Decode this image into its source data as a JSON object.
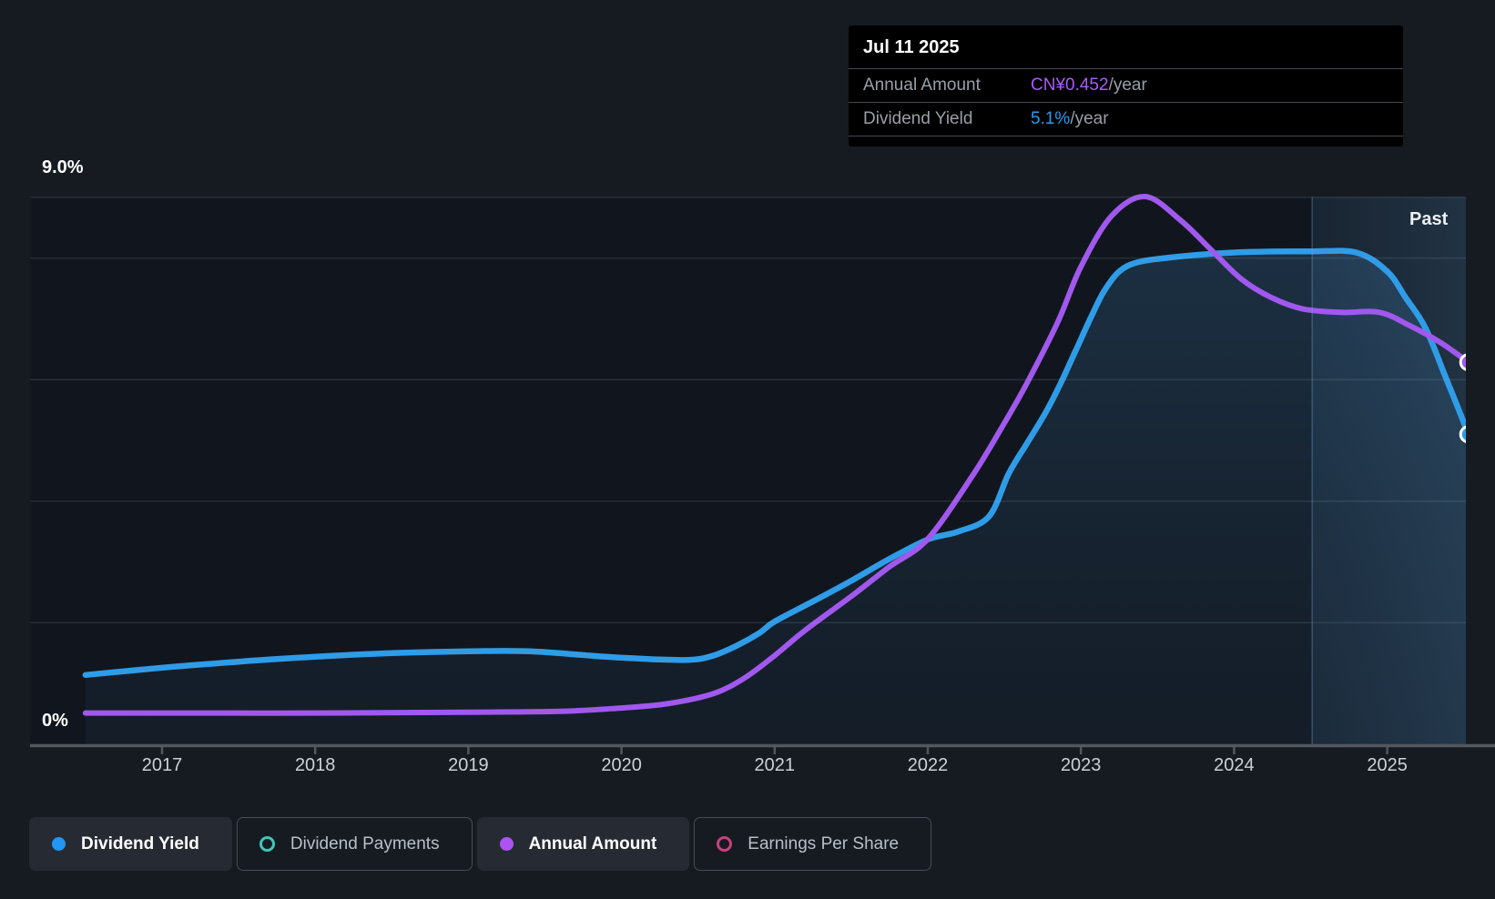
{
  "tooltip": {
    "date": "Jul 11 2025",
    "rows": [
      {
        "label": "Annual Amount",
        "value": "CN¥0.452",
        "suffix": "/year",
        "color": "#ab5bf5"
      },
      {
        "label": "Dividend Yield",
        "value": "5.1%",
        "suffix": "/year",
        "color": "#2a9cf2"
      }
    ]
  },
  "y_axis": {
    "top": "9.0%",
    "bottom": "0%"
  },
  "x_axis": {
    "labels": [
      "2017",
      "2018",
      "2019",
      "2020",
      "2021",
      "2022",
      "2023",
      "2024",
      "2025"
    ]
  },
  "region_label": "Past",
  "legend": [
    {
      "label": "Dividend Yield",
      "color": "#2196f3",
      "marker": "filled",
      "active": true
    },
    {
      "label": "Dividend Payments",
      "color": "#45c4b8",
      "marker": "open",
      "active": false
    },
    {
      "label": "Annual Amount",
      "color": "#ad53f2",
      "marker": "filled",
      "active": true
    },
    {
      "label": "Earnings Per Share",
      "color": "#c9417c",
      "marker": "open",
      "active": false
    }
  ],
  "colors": {
    "background": "#161b22",
    "plot_background": "#11161e",
    "blue_line": "#2f9ce8",
    "purple_line": "#a158ee",
    "axis": "#53575e"
  },
  "chart_data": {
    "type": "line",
    "title": "Dividend history and yield",
    "x_range": [
      2016.5,
      2025.53
    ],
    "divider_year": 2024.51,
    "x_ticks_years": [
      2017,
      2018,
      2019,
      2020,
      2021,
      2022,
      2023,
      2024,
      2025
    ],
    "y_left": {
      "label": "Dividend Yield",
      "unit": "%",
      "min": 0,
      "max": 9,
      "gridlines_pct": [
        9,
        8,
        6,
        4,
        2
      ]
    },
    "y_right": {
      "label": "Annual Amount",
      "unit": "CN¥/year"
    },
    "legend_position": "bottom-left",
    "grid": true,
    "series": [
      {
        "name": "Dividend Yield",
        "unit": "%",
        "axis": "pct",
        "color": "#2f9ce8",
        "area": true,
        "end_value_label": "5.1%/year",
        "points": [
          [
            2016.5,
            1.14
          ],
          [
            2017,
            1.26
          ],
          [
            2017.5,
            1.36
          ],
          [
            2018,
            1.44
          ],
          [
            2018.5,
            1.5
          ],
          [
            2019,
            1.53
          ],
          [
            2019.4,
            1.53
          ],
          [
            2019.9,
            1.44
          ],
          [
            2020.2,
            1.4
          ],
          [
            2020.45,
            1.39
          ],
          [
            2020.6,
            1.46
          ],
          [
            2020.75,
            1.62
          ],
          [
            2020.9,
            1.83
          ],
          [
            2021,
            2.02
          ],
          [
            2021.25,
            2.35
          ],
          [
            2021.5,
            2.69
          ],
          [
            2021.75,
            3.05
          ],
          [
            2022,
            3.37
          ],
          [
            2022.2,
            3.5
          ],
          [
            2022.4,
            3.75
          ],
          [
            2022.53,
            4.46
          ],
          [
            2022.65,
            4.96
          ],
          [
            2022.77,
            5.46
          ],
          [
            2022.87,
            5.95
          ],
          [
            2022.97,
            6.5
          ],
          [
            2023.07,
            7.05
          ],
          [
            2023.15,
            7.45
          ],
          [
            2023.25,
            7.78
          ],
          [
            2023.37,
            7.93
          ],
          [
            2023.55,
            8.0
          ],
          [
            2023.8,
            8.06
          ],
          [
            2024.1,
            8.1
          ],
          [
            2024.5,
            8.11
          ],
          [
            2024.8,
            8.09
          ],
          [
            2025,
            7.78
          ],
          [
            2025.12,
            7.35
          ],
          [
            2025.25,
            6.85
          ],
          [
            2025.38,
            6.05
          ],
          [
            2025.46,
            5.55
          ],
          [
            2025.53,
            5.1
          ]
        ]
      },
      {
        "name": "Annual Amount",
        "unit": "CN¥",
        "axis": "cny",
        "color": "#a158ee",
        "area": false,
        "end_value_label": "CN¥0.452/year",
        "points": [
          [
            2016.5,
            0.037
          ],
          [
            2017,
            0.037
          ],
          [
            2018,
            0.037
          ],
          [
            2019,
            0.038
          ],
          [
            2019.6,
            0.039
          ],
          [
            2020,
            0.043
          ],
          [
            2020.3,
            0.048
          ],
          [
            2020.6,
            0.06
          ],
          [
            2020.8,
            0.078
          ],
          [
            2021,
            0.105
          ],
          [
            2021.2,
            0.135
          ],
          [
            2021.5,
            0.175
          ],
          [
            2021.75,
            0.21
          ],
          [
            2022,
            0.243
          ],
          [
            2022.3,
            0.32
          ],
          [
            2022.5,
            0.38
          ],
          [
            2022.65,
            0.428
          ],
          [
            2022.85,
            0.5
          ],
          [
            2023,
            0.565
          ],
          [
            2023.2,
            0.625
          ],
          [
            2023.42,
            0.648
          ],
          [
            2023.65,
            0.62
          ],
          [
            2023.85,
            0.585
          ],
          [
            2024.05,
            0.55
          ],
          [
            2024.25,
            0.528
          ],
          [
            2024.45,
            0.515
          ],
          [
            2024.7,
            0.511
          ],
          [
            2024.95,
            0.511
          ],
          [
            2025.15,
            0.495
          ],
          [
            2025.35,
            0.475
          ],
          [
            2025.53,
            0.452
          ]
        ]
      }
    ]
  }
}
